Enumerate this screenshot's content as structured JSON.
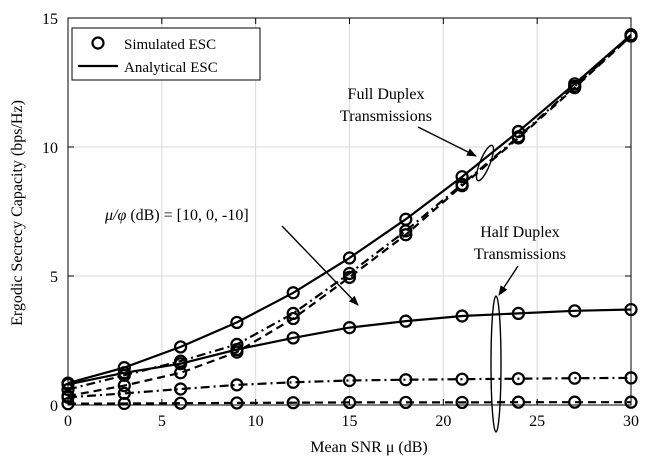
{
  "chart_data": {
    "type": "line",
    "xlabel": "Mean SNR μ (dB)",
    "ylabel": "Ergodic Secrecy Capacity (bps/Hz)",
    "xlim": [
      0,
      30
    ],
    "ylim": [
      0,
      15
    ],
    "xticks": [
      0,
      5,
      10,
      15,
      20,
      25,
      30
    ],
    "yticks": [
      0,
      5,
      10,
      15
    ],
    "grid": true,
    "legend": {
      "position": "top-left",
      "entries": [
        {
          "label": "Simulated ESC",
          "style": "circle-marker"
        },
        {
          "label": "Analytical ESC",
          "style": "solid-line"
        }
      ]
    },
    "annotations": {
      "full_duplex": [
        "Full Duplex",
        "Transmissions"
      ],
      "half_duplex": [
        "Half Duplex",
        "Transmissions"
      ],
      "ratio_prefix": "μ/φ",
      "ratio_text": " (dB) = [10, 0, -10]"
    },
    "x": [
      0,
      3,
      6,
      9,
      12,
      15,
      18,
      21,
      24,
      27,
      30
    ],
    "series": [
      {
        "group": "full-duplex",
        "dash": "solid",
        "values": [
          0.85,
          1.45,
          2.25,
          3.2,
          4.35,
          5.7,
          7.2,
          8.85,
          10.6,
          12.45,
          14.35
        ]
      },
      {
        "group": "full-duplex",
        "dash": "dashdot",
        "values": [
          0.6,
          1.15,
          1.7,
          2.35,
          3.55,
          5.1,
          6.75,
          8.55,
          10.4,
          12.35,
          14.3
        ]
      },
      {
        "group": "full-duplex",
        "dash": "dashed",
        "values": [
          0.35,
          0.75,
          1.25,
          2.05,
          3.35,
          4.95,
          6.6,
          8.5,
          10.35,
          12.3,
          14.3
        ]
      },
      {
        "group": "half-duplex",
        "dash": "solid",
        "values": [
          0.8,
          1.25,
          1.6,
          2.15,
          2.6,
          3.0,
          3.25,
          3.45,
          3.55,
          3.65,
          3.7
        ]
      },
      {
        "group": "half-duplex",
        "dash": "dashdot",
        "values": [
          0.3,
          0.45,
          0.62,
          0.78,
          0.88,
          0.95,
          0.98,
          1.0,
          1.02,
          1.04,
          1.05
        ]
      },
      {
        "group": "half-duplex",
        "dash": "dashed",
        "values": [
          0.05,
          0.06,
          0.07,
          0.08,
          0.09,
          0.1,
          0.1,
          0.1,
          0.11,
          0.11,
          0.11
        ]
      }
    ]
  }
}
